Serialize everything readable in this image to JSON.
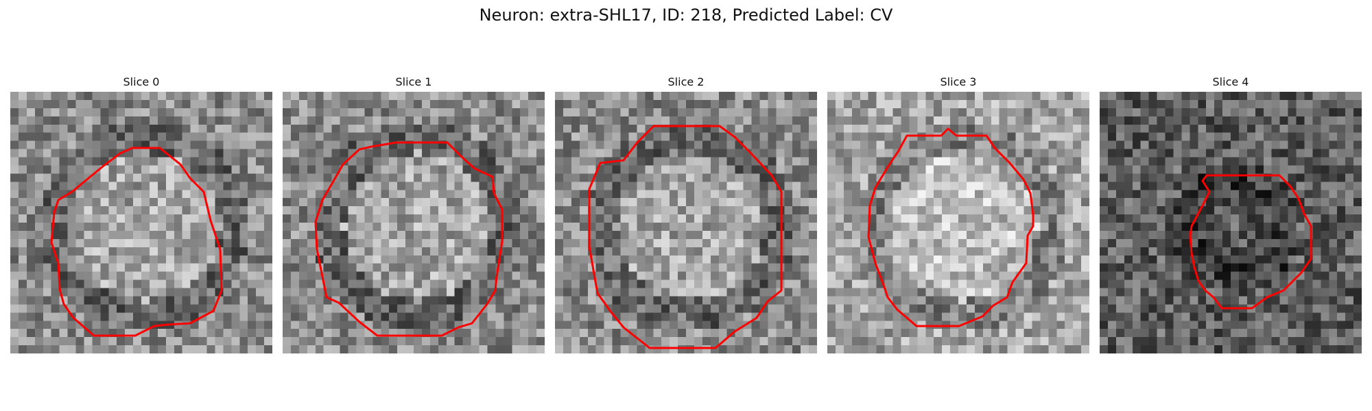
{
  "figure": {
    "title": "Neuron: extra-SHL17, ID: 218, Predicted Label: CV",
    "contour_color": "#ff0000"
  },
  "panels": [
    {
      "title": "Slice 0",
      "contour_scale": 1.0,
      "tone": "mixed"
    },
    {
      "title": "Slice 1",
      "contour_scale": 1.0,
      "tone": "mixed"
    },
    {
      "title": "Slice 2",
      "contour_scale": 1.0,
      "tone": "mixed"
    },
    {
      "title": "Slice 3",
      "contour_scale": 1.0,
      "tone": "light"
    },
    {
      "title": "Slice 4",
      "contour_scale": 0.6,
      "tone": "dark"
    }
  ]
}
